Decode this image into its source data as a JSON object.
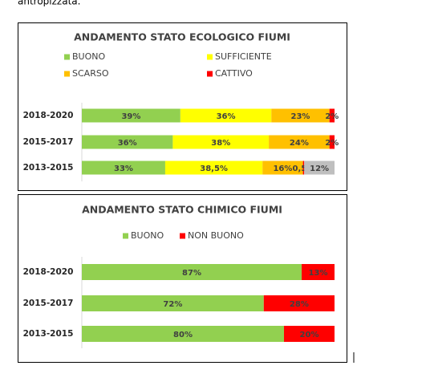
{
  "document": {
    "text": "antropizzata."
  },
  "chart_data": [
    {
      "type": "stacked-bar",
      "title": "ANDAMENTO STATO ECOLOGICO FIUMI",
      "categories": [
        "2018-2020",
        "2015-2017",
        "2013-2015"
      ],
      "series": [
        {
          "name": "BUONO",
          "color": "#92d050",
          "values": [
            39,
            36,
            33
          ],
          "value_labels": [
            "39%",
            "36%",
            "33%"
          ]
        },
        {
          "name": "SUFFICIENTE",
          "color": "#ffff00",
          "values": [
            36,
            38,
            38.5
          ],
          "value_labels": [
            "36%",
            "38%",
            "38,5%"
          ]
        },
        {
          "name": "SCARSO",
          "color": "#ffc000",
          "values": [
            23,
            24,
            16
          ],
          "value_labels": [
            "23%",
            "24%",
            "16%"
          ]
        },
        {
          "name": "CATTIVO",
          "color": "#ff0000",
          "values": [
            2,
            2,
            0.5
          ],
          "value_labels": [
            "2%",
            "2%",
            "0,5%"
          ]
        },
        {
          "color": "#bfbfbf",
          "values": [
            null,
            null,
            12
          ],
          "value_labels": [
            null,
            null,
            "12%"
          ]
        }
      ]
    },
    {
      "type": "stacked-bar",
      "title": "ANDAMENTO STATO CHIMICO FIUMI",
      "categories": [
        "2018-2020",
        "2015-2017",
        "2013-2015"
      ],
      "series": [
        {
          "name": "BUONO",
          "color": "#92d050",
          "values": [
            87,
            72,
            80
          ],
          "value_labels": [
            "87%",
            "72%",
            "80%"
          ]
        },
        {
          "name": "NON BUONO",
          "color": "#ff0000",
          "values": [
            13,
            28,
            20
          ],
          "value_labels": [
            "13%",
            "28%",
            "20%"
          ]
        }
      ]
    }
  ]
}
